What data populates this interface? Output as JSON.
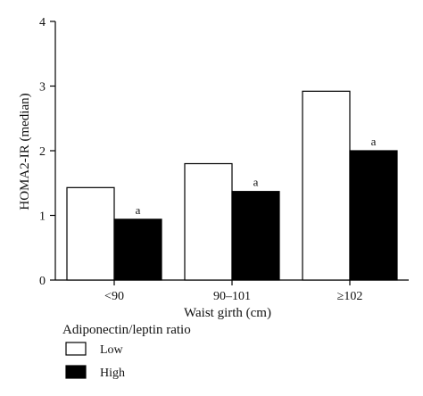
{
  "chart_data": {
    "type": "bar",
    "title": "",
    "xlabel": "Waist girth (cm)",
    "ylabel": "HOMA2-IR (median)",
    "ylim": [
      0,
      4
    ],
    "yticks": [
      "0",
      "1",
      "2",
      "3",
      "4"
    ],
    "categories": [
      "<90",
      "90–101",
      "≥102"
    ],
    "legend_title": "Adiponectin/leptin ratio",
    "legend_placement": "bottom-left",
    "grid": false,
    "series": [
      {
        "name": "Low",
        "values": [
          1.43,
          1.8,
          2.92
        ],
        "labels": [
          "",
          "",
          ""
        ],
        "color": "#ffffff"
      },
      {
        "name": "High",
        "values": [
          0.94,
          1.37,
          2.0
        ],
        "labels": [
          "a",
          "a",
          "a"
        ],
        "color": "#000000"
      }
    ]
  }
}
